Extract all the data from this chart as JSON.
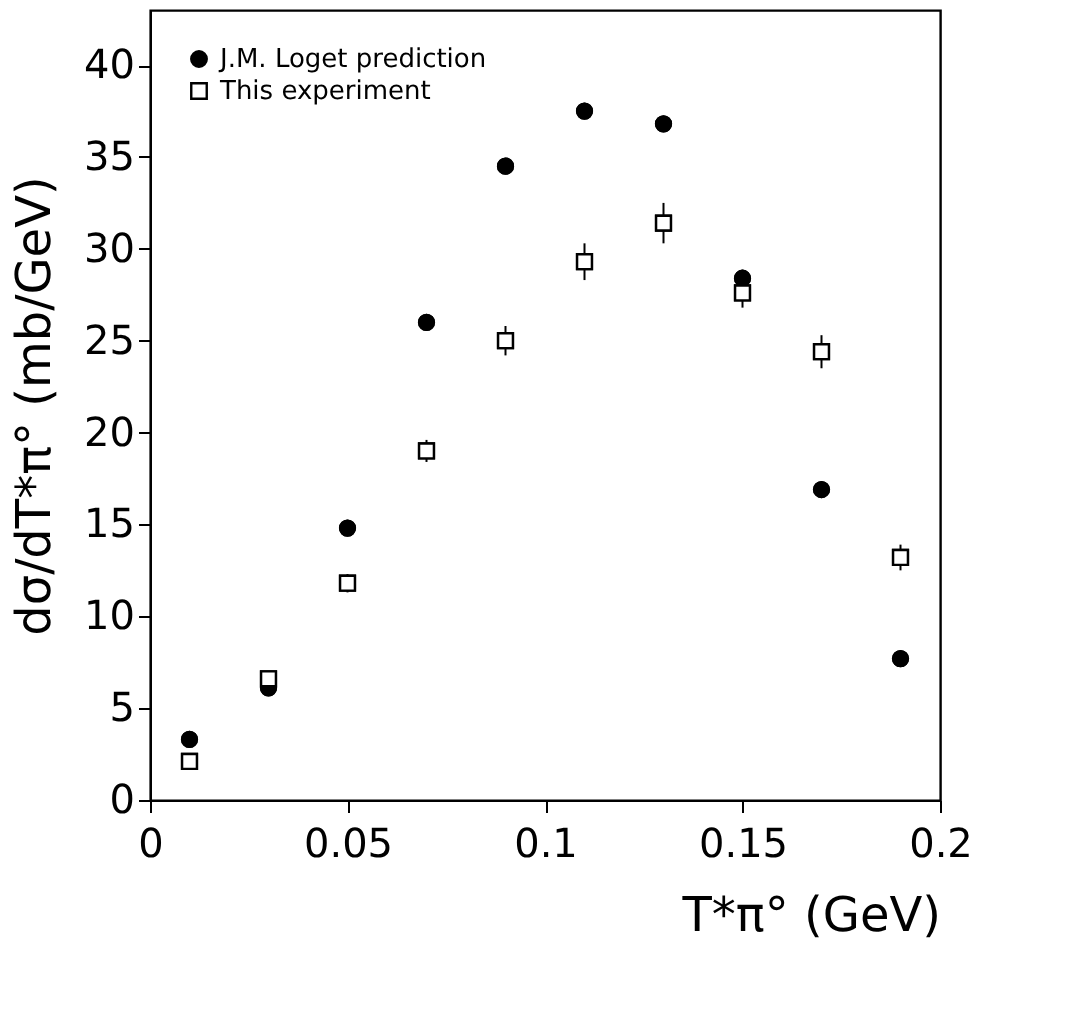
{
  "chart_data": {
    "type": "scatter",
    "xlabel": "T*π° (GeV)",
    "ylabel": "dσ/dT*π° (mb/GeV)",
    "x": [
      0.01,
      0.03,
      0.05,
      0.07,
      0.09,
      0.11,
      0.13,
      0.15,
      0.17,
      0.19
    ],
    "series": [
      {
        "name": "J.M. Loget prediction",
        "color": "#000000",
        "marker": "circle",
        "values": [
          3.3,
          6.1,
          14.8,
          26.0,
          34.5,
          37.5,
          36.8,
          28.4,
          16.9,
          7.7
        ]
      },
      {
        "name": "This experiment",
        "color": "#000000",
        "marker": "square",
        "values": [
          2.1,
          6.6,
          11.8,
          19.0,
          25.0,
          29.3,
          31.4,
          27.6,
          24.4,
          13.2
        ],
        "errors": [
          0.3,
          0.4,
          0.5,
          0.6,
          0.8,
          1.0,
          1.1,
          0.8,
          0.9,
          0.7
        ]
      }
    ],
    "xlim": [
      0,
      0.2
    ],
    "xticks": [
      0,
      0.05,
      0.1,
      0.15,
      0.2
    ],
    "ylim": [
      0,
      43
    ],
    "yticks": [
      0,
      5,
      10,
      15,
      20,
      25,
      30,
      35,
      40
    ],
    "grid": false,
    "legend": "top left"
  }
}
